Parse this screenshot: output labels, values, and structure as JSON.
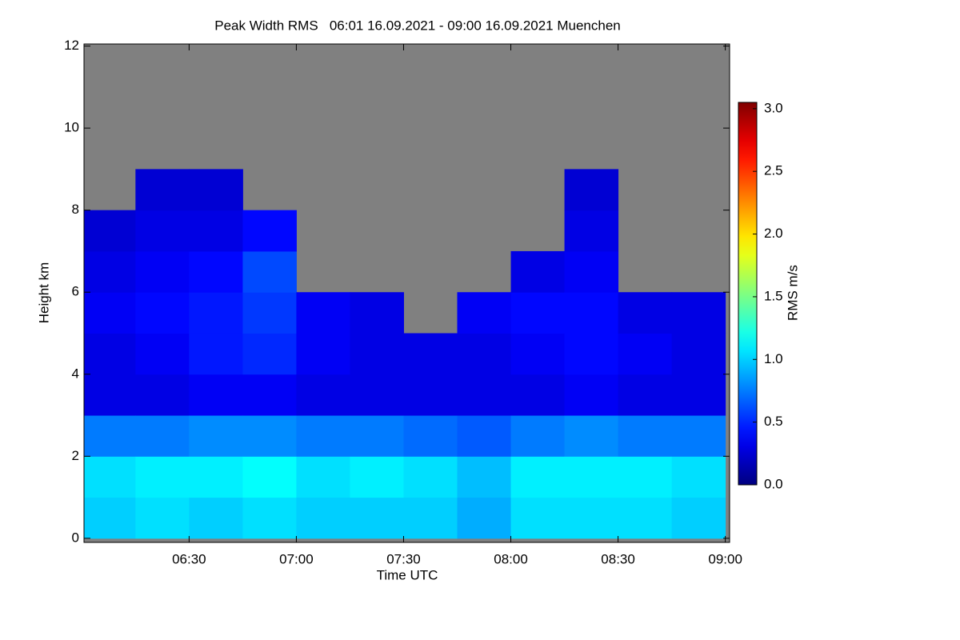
{
  "chart_data": {
    "type": "heatmap",
    "title": "Peak Width RMS   06:01 16.09.2021 - 09:00 16.09.2021 Muenchen",
    "xlabel": "Time UTC",
    "ylabel": "Height km",
    "colorbar_label": "RMS m/s",
    "colormap": "jet",
    "missing_color": "#808080",
    "xlim": [
      6.01,
      9.02
    ],
    "ylim": [
      -0.1,
      12.05
    ],
    "clim": [
      0,
      3.05
    ],
    "xticks": [
      {
        "value": 6.5,
        "label": "06:30"
      },
      {
        "value": 7,
        "label": "07:00"
      },
      {
        "value": 7.5,
        "label": "07:30"
      },
      {
        "value": 8,
        "label": "08:00"
      },
      {
        "value": 8.5,
        "label": "08:30"
      },
      {
        "value": 9,
        "label": "09:00"
      }
    ],
    "yticks": [
      0,
      2,
      4,
      6,
      8,
      10,
      12
    ],
    "cticks": [
      {
        "value": 0,
        "label": "0.0"
      },
      {
        "value": 0.5,
        "label": "0.5"
      },
      {
        "value": 1,
        "label": "1.0"
      },
      {
        "value": 1.5,
        "label": "1.5"
      },
      {
        "value": 2,
        "label": "2.0"
      },
      {
        "value": 2.5,
        "label": "2.5"
      },
      {
        "value": 3,
        "label": "3.0"
      }
    ],
    "xbins": [
      6,
      6.25,
      6.5,
      6.75,
      7,
      7.25,
      7.5,
      7.75,
      8,
      8.25,
      8.5,
      8.75,
      9
    ],
    "ybins": [
      0,
      1,
      2,
      3,
      4,
      5,
      6,
      7,
      8,
      9,
      10,
      11,
      12
    ],
    "values": [
      [
        1.0,
        1.05,
        0.75,
        0.3,
        0.3,
        0.35,
        0.3,
        0.25,
        null,
        null,
        null,
        null
      ],
      [
        1.05,
        1.1,
        0.75,
        0.3,
        0.35,
        0.4,
        0.35,
        0.3,
        0.25,
        null,
        null,
        null
      ],
      [
        1.0,
        1.1,
        0.8,
        0.35,
        0.45,
        0.45,
        0.4,
        0.3,
        0.25,
        null,
        null,
        null
      ],
      [
        1.05,
        1.15,
        0.8,
        0.35,
        0.5,
        0.55,
        0.6,
        0.4,
        null,
        null,
        null,
        null
      ],
      [
        1.0,
        1.05,
        0.75,
        0.3,
        0.35,
        0.35,
        null,
        null,
        null,
        null,
        null,
        null
      ],
      [
        1.0,
        1.1,
        0.75,
        0.3,
        0.3,
        0.3,
        null,
        null,
        null,
        null,
        null,
        null
      ],
      [
        1.0,
        1.05,
        0.7,
        0.3,
        0.3,
        null,
        null,
        null,
        null,
        null,
        null,
        null
      ],
      [
        0.9,
        0.95,
        0.65,
        0.3,
        0.3,
        0.35,
        null,
        null,
        null,
        null,
        null,
        null
      ],
      [
        1.05,
        1.1,
        0.75,
        0.3,
        0.35,
        0.4,
        0.3,
        null,
        null,
        null,
        null,
        null
      ],
      [
        1.05,
        1.1,
        0.8,
        0.35,
        0.4,
        0.4,
        0.35,
        0.3,
        0.25,
        null,
        null,
        null
      ],
      [
        1.05,
        1.1,
        0.75,
        0.3,
        0.35,
        0.3,
        null,
        null,
        null,
        null,
        null,
        null
      ],
      [
        1.0,
        1.05,
        0.75,
        0.3,
        0.3,
        0.3,
        null,
        null,
        null,
        null,
        null,
        null
      ]
    ]
  }
}
